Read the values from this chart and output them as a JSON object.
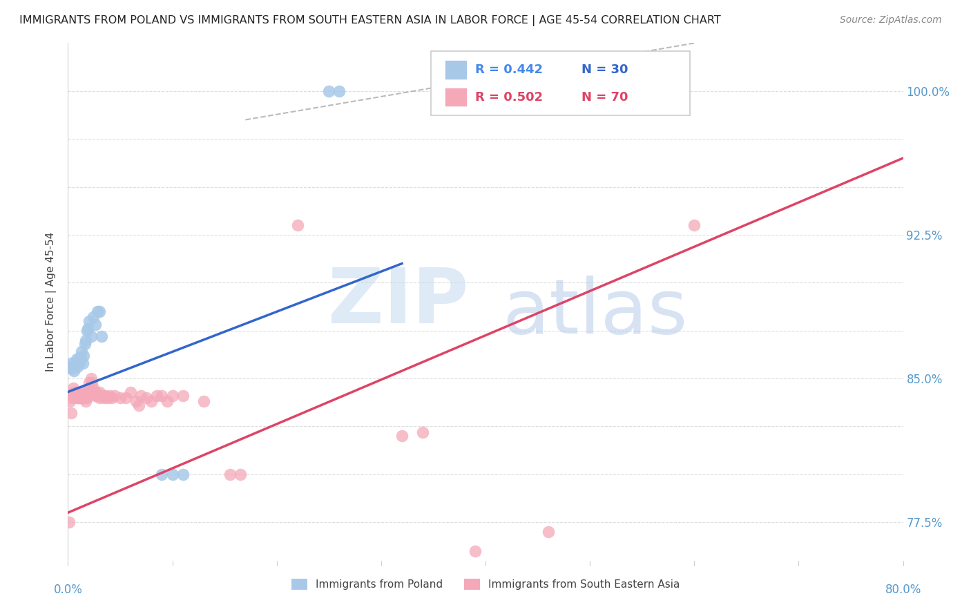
{
  "title": "IMMIGRANTS FROM POLAND VS IMMIGRANTS FROM SOUTH EASTERN ASIA IN LABOR FORCE | AGE 45-54 CORRELATION CHART",
  "source": "Source: ZipAtlas.com",
  "ylabel": "In Labor Force | Age 45-54",
  "xlim": [
    0.0,
    0.8
  ],
  "ylim": [
    0.755,
    1.025
  ],
  "blue_color": "#a8c8e8",
  "pink_color": "#f4a8b8",
  "blue_line_color": "#3366cc",
  "pink_line_color": "#dd4466",
  "legend_r_blue": "R = 0.442",
  "legend_n_blue": "N = 30",
  "legend_r_pink": "R = 0.502",
  "legend_n_pink": "N = 70",
  "legend_r_blue_color": "#4488ee",
  "legend_n_blue_color": "#3366cc",
  "legend_r_pink_color": "#dd4466",
  "legend_n_pink_color": "#dd4466",
  "title_color": "#222222",
  "source_color": "#888888",
  "tick_color": "#5599cc",
  "grid_color": "#dddddd",
  "right_yticks": [
    0.775,
    0.85,
    0.925,
    1.0
  ],
  "right_ytick_labels": [
    "77.5%",
    "85.0%",
    "92.5%",
    "100.0%"
  ],
  "all_yticks": [
    0.775,
    0.8,
    0.825,
    0.85,
    0.875,
    0.9,
    0.925,
    0.95,
    0.975,
    1.0
  ],
  "blue_dots": [
    [
      0.002,
      0.856
    ],
    [
      0.003,
      0.858
    ],
    [
      0.004,
      0.855
    ],
    [
      0.005,
      0.857
    ],
    [
      0.006,
      0.854
    ],
    [
      0.007,
      0.857
    ],
    [
      0.008,
      0.86
    ],
    [
      0.009,
      0.856
    ],
    [
      0.01,
      0.858
    ],
    [
      0.011,
      0.861
    ],
    [
      0.012,
      0.86
    ],
    [
      0.013,
      0.864
    ],
    [
      0.014,
      0.858
    ],
    [
      0.015,
      0.862
    ],
    [
      0.016,
      0.868
    ],
    [
      0.017,
      0.87
    ],
    [
      0.018,
      0.875
    ],
    [
      0.019,
      0.876
    ],
    [
      0.02,
      0.88
    ],
    [
      0.022,
      0.872
    ],
    [
      0.024,
      0.882
    ],
    [
      0.026,
      0.878
    ],
    [
      0.028,
      0.885
    ],
    [
      0.03,
      0.885
    ],
    [
      0.032,
      0.872
    ],
    [
      0.09,
      0.8
    ],
    [
      0.1,
      0.8
    ],
    [
      0.11,
      0.8
    ],
    [
      0.25,
      1.0
    ],
    [
      0.26,
      1.0
    ]
  ],
  "pink_dots": [
    [
      0.001,
      0.775
    ],
    [
      0.002,
      0.838
    ],
    [
      0.003,
      0.832
    ],
    [
      0.004,
      0.84
    ],
    [
      0.005,
      0.842
    ],
    [
      0.005,
      0.845
    ],
    [
      0.006,
      0.841
    ],
    [
      0.006,
      0.843
    ],
    [
      0.007,
      0.84
    ],
    [
      0.007,
      0.843
    ],
    [
      0.008,
      0.841
    ],
    [
      0.008,
      0.843
    ],
    [
      0.009,
      0.84
    ],
    [
      0.009,
      0.843
    ],
    [
      0.01,
      0.84
    ],
    [
      0.01,
      0.843
    ],
    [
      0.011,
      0.84
    ],
    [
      0.011,
      0.843
    ],
    [
      0.012,
      0.841
    ],
    [
      0.012,
      0.843
    ],
    [
      0.013,
      0.84
    ],
    [
      0.013,
      0.843
    ],
    [
      0.014,
      0.84
    ],
    [
      0.014,
      0.843
    ],
    [
      0.015,
      0.84
    ],
    [
      0.015,
      0.843
    ],
    [
      0.016,
      0.84
    ],
    [
      0.017,
      0.838
    ],
    [
      0.018,
      0.84
    ],
    [
      0.019,
      0.843
    ],
    [
      0.02,
      0.848
    ],
    [
      0.022,
      0.85
    ],
    [
      0.023,
      0.848
    ],
    [
      0.024,
      0.845
    ],
    [
      0.025,
      0.843
    ],
    [
      0.026,
      0.841
    ],
    [
      0.027,
      0.843
    ],
    [
      0.028,
      0.841
    ],
    [
      0.03,
      0.84
    ],
    [
      0.03,
      0.843
    ],
    [
      0.032,
      0.841
    ],
    [
      0.034,
      0.841
    ],
    [
      0.035,
      0.84
    ],
    [
      0.036,
      0.841
    ],
    [
      0.038,
      0.84
    ],
    [
      0.04,
      0.841
    ],
    [
      0.042,
      0.84
    ],
    [
      0.045,
      0.841
    ],
    [
      0.05,
      0.84
    ],
    [
      0.055,
      0.84
    ],
    [
      0.06,
      0.843
    ],
    [
      0.065,
      0.838
    ],
    [
      0.068,
      0.836
    ],
    [
      0.07,
      0.841
    ],
    [
      0.075,
      0.84
    ],
    [
      0.08,
      0.838
    ],
    [
      0.085,
      0.841
    ],
    [
      0.09,
      0.841
    ],
    [
      0.095,
      0.838
    ],
    [
      0.1,
      0.841
    ],
    [
      0.11,
      0.841
    ],
    [
      0.13,
      0.838
    ],
    [
      0.155,
      0.8
    ],
    [
      0.165,
      0.8
    ],
    [
      0.22,
      0.93
    ],
    [
      0.32,
      0.82
    ],
    [
      0.34,
      0.822
    ],
    [
      0.39,
      0.76
    ],
    [
      0.46,
      0.77
    ],
    [
      0.6,
      0.93
    ]
  ],
  "blue_line_x": [
    0.0,
    0.32
  ],
  "blue_line_y": [
    0.843,
    0.91
  ],
  "pink_line_x": [
    0.0,
    0.8
  ],
  "pink_line_y": [
    0.78,
    0.965
  ],
  "diag_line_x": [
    0.17,
    0.6
  ],
  "diag_line_y": [
    0.985,
    1.025
  ],
  "watermark_zip_color": "#c8ddf0",
  "watermark_atlas_color": "#b0c8e8"
}
